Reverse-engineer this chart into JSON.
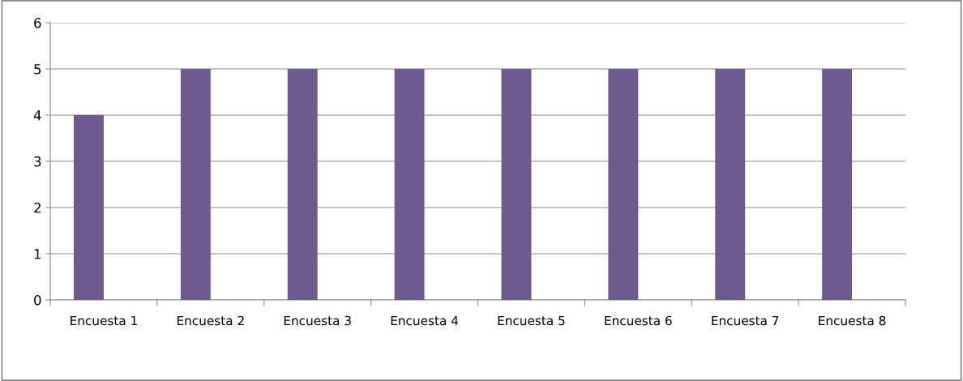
{
  "chart_data": {
    "type": "bar",
    "categories": [
      "Encuesta 1",
      "Encuesta 2",
      "Encuesta 3",
      "Encuesta 4",
      "Encuesta 5",
      "Encuesta 6",
      "Encuesta 7",
      "Encuesta 8"
    ],
    "values": [
      4,
      5,
      5,
      5,
      5,
      5,
      5,
      5
    ],
    "color": "#6f5a8e",
    "ylim": [
      0,
      6
    ],
    "yticks": [
      0,
      1,
      2,
      3,
      4,
      5,
      6
    ],
    "grid": "y",
    "legend": false
  }
}
